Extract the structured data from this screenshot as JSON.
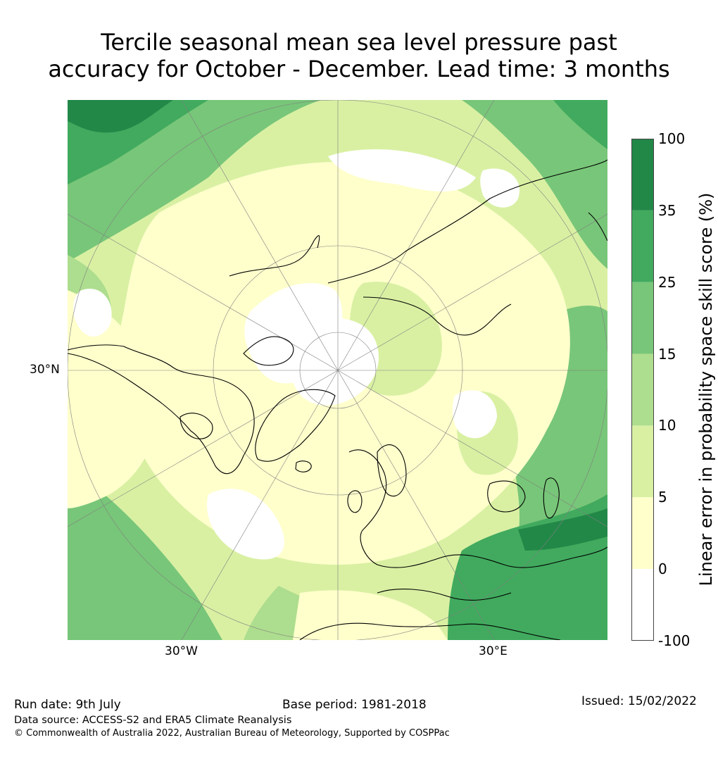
{
  "title": {
    "line1": "Tercile seasonal mean sea level pressure past",
    "line2": "accuracy for October - December. Lead time: 3 months"
  },
  "map": {
    "projection": "north-polar-stereographic",
    "axis_labels": {
      "lat": "30°N",
      "lon_west": "30°W",
      "lon_east": "30°E"
    },
    "colors": {
      "ocean_green_dark": "#228848",
      "outline": "#000000"
    }
  },
  "colorbar": {
    "title": "Linear error in probability space skill score (%)",
    "ticks": [
      "100",
      "35",
      "25",
      "15",
      "10",
      "5",
      "0",
      "-100"
    ],
    "bins": [
      {
        "from": "35",
        "to": "100",
        "color": "#228848"
      },
      {
        "from": "25",
        "to": "35",
        "color": "#41aa5e"
      },
      {
        "from": "15",
        "to": "25",
        "color": "#78c679"
      },
      {
        "from": "10",
        "to": "15",
        "color": "#addd8e"
      },
      {
        "from": "5",
        "to": "10",
        "color": "#d9f0a3"
      },
      {
        "from": "0",
        "to": "5",
        "color": "#ffffcc"
      },
      {
        "from": "-100",
        "to": "0",
        "color": "#ffffff"
      }
    ]
  },
  "footer": {
    "run_date": "Run date: 9th July",
    "base_period": "Base period: 1981-2018",
    "issued": "Issued: 15/02/2022",
    "data_source": "Data source: ACCESS-S2 and ERA5 Climate Reanalysis",
    "copyright": "© Commonwealth of Australia 2022, Australian Bureau of Meteorology, Supported by COSPPac"
  }
}
